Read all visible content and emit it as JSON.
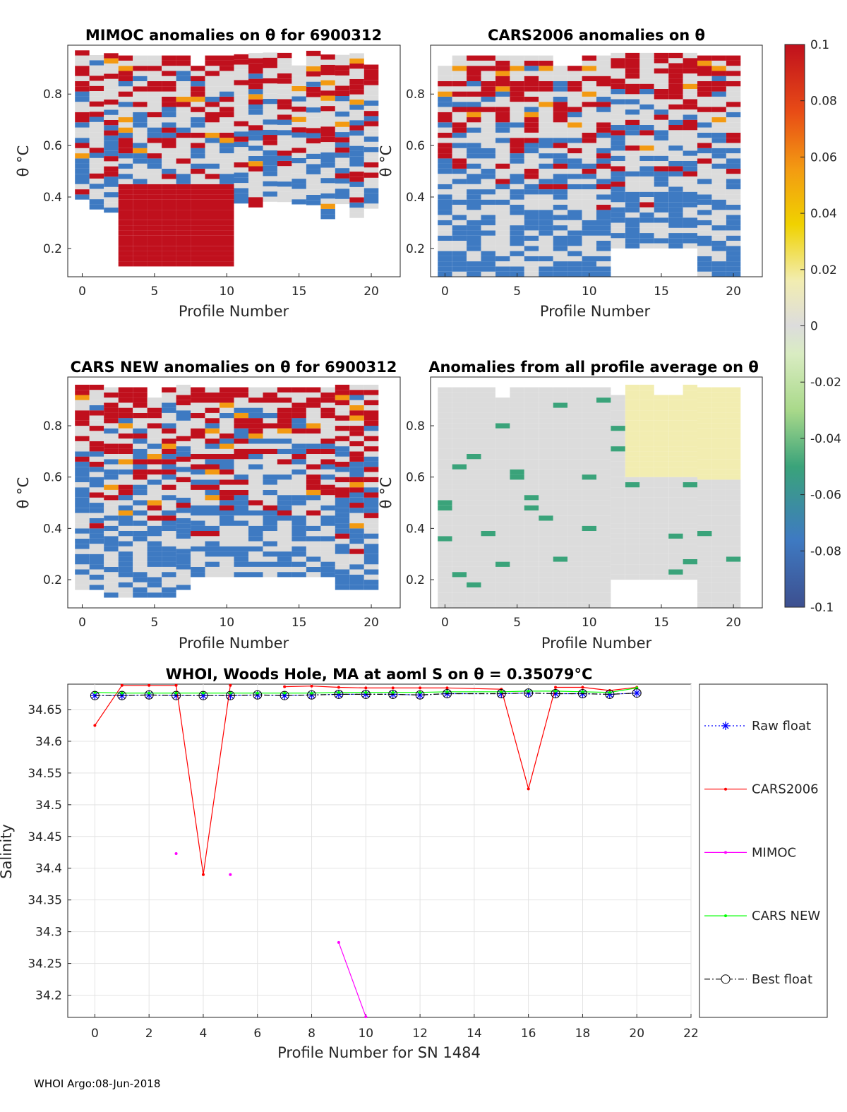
{
  "footer": "WHOI Argo:08-Jun-2018",
  "colorbar": {
    "ticks": [
      "0.1",
      "0.08",
      "0.06",
      "0.04",
      "0.02",
      "0",
      "-0.02",
      "-0.04",
      "-0.06",
      "-0.08",
      "-0.1"
    ],
    "range": [
      -0.1,
      0.1
    ]
  },
  "chart_data": [
    {
      "type": "heatmap",
      "title": "MIMOC anomalies on θ  for 6900312",
      "xlabel": "Profile Number",
      "ylabel": "θ °C",
      "xticks": [
        "0",
        "5",
        "10",
        "15",
        "20"
      ],
      "yticks": [
        "0.8",
        "0.6",
        "0.4",
        "0.2"
      ],
      "xlim": [
        -1,
        22
      ],
      "ylim": [
        0.09,
        0.99
      ]
    },
    {
      "type": "heatmap",
      "title": "CARS2006 anomalies on θ",
      "xlabel": "Profile Number",
      "ylabel": "θ °C",
      "xticks": [
        "0",
        "5",
        "10",
        "15",
        "20"
      ],
      "yticks": [
        "0.8",
        "0.6",
        "0.4",
        "0.2"
      ],
      "xlim": [
        -1,
        22
      ],
      "ylim": [
        0.09,
        0.99
      ]
    },
    {
      "type": "heatmap",
      "title": "CARS NEW anomalies on θ for 6900312",
      "xlabel": "Profile Number",
      "ylabel": "θ °C",
      "xticks": [
        "0",
        "5",
        "10",
        "15",
        "20"
      ],
      "yticks": [
        "0.8",
        "0.6",
        "0.4",
        "0.2"
      ],
      "xlim": [
        -1,
        22
      ],
      "ylim": [
        0.09,
        0.99
      ]
    },
    {
      "type": "heatmap",
      "title": "Anomalies from all profile average on θ",
      "xlabel": "Profile Number",
      "ylabel": "",
      "xticks": [
        "0",
        "5",
        "10",
        "15",
        "20"
      ],
      "yticks": [
        "0.8",
        "0.6",
        "0.4",
        "0.2"
      ],
      "xlim": [
        -1,
        22
      ],
      "ylim": [
        0.09,
        0.99
      ]
    },
    {
      "type": "line",
      "title": "WHOI, Woods Hole, MA at aoml S on θ = 0.35079°C",
      "xlabel": "Profile Number for SN 1484",
      "ylabel": "Salinity",
      "xlim": [
        -1,
        22
      ],
      "ylim": [
        34.165,
        34.69
      ],
      "xticks": [
        0,
        2,
        4,
        6,
        8,
        10,
        12,
        14,
        16,
        18,
        20,
        22
      ],
      "yticks": [
        34.2,
        34.25,
        34.3,
        34.35,
        34.4,
        34.45,
        34.5,
        34.55,
        34.6,
        34.65
      ],
      "series": [
        {
          "name": "Raw float",
          "color": "#0000ff",
          "style": "dotted",
          "marker": "star",
          "x": [
            0,
            1,
            2,
            3,
            4,
            5,
            6,
            7,
            8,
            9,
            10,
            11,
            12,
            13,
            15,
            16,
            17,
            18,
            19,
            20
          ],
          "y": [
            34.672,
            34.672,
            34.673,
            34.672,
            34.672,
            34.672,
            34.673,
            34.672,
            34.673,
            34.674,
            34.674,
            34.674,
            34.673,
            34.675,
            34.675,
            34.676,
            34.675,
            34.675,
            34.674,
            34.676
          ]
        },
        {
          "name": "CARS2006",
          "color": "#ff0000",
          "style": "solid",
          "marker": "dot",
          "x": [
            0,
            1,
            2,
            3,
            4,
            5,
            null,
            7,
            8,
            9,
            10,
            11,
            12,
            13,
            15,
            16,
            17,
            18,
            19,
            20
          ],
          "y": [
            34.625,
            34.688,
            34.688,
            34.688,
            34.39,
            34.688,
            null,
            34.686,
            34.687,
            34.685,
            34.684,
            34.684,
            34.684,
            34.684,
            34.682,
            34.525,
            34.685,
            34.685,
            34.68,
            34.685
          ]
        },
        {
          "name": "MIMOC",
          "color": "#ff00ff",
          "style": "solid",
          "marker": "dot",
          "x": [
            3,
            null,
            5,
            null,
            9,
            10
          ],
          "y": [
            34.423,
            null,
            34.39,
            null,
            34.283,
            34.166
          ]
        },
        {
          "name": "CARS NEW",
          "color": "#00ff00",
          "style": "solid",
          "marker": "dot",
          "x": [
            0,
            1,
            2,
            3,
            4,
            5,
            6,
            7,
            8,
            9,
            10,
            11,
            12,
            13,
            15,
            16,
            17,
            18,
            19,
            20
          ],
          "y": [
            34.677,
            34.676,
            34.676,
            34.676,
            34.676,
            34.676,
            34.676,
            34.676,
            34.676,
            34.677,
            34.677,
            34.677,
            34.677,
            34.678,
            34.678,
            34.679,
            34.679,
            34.678,
            34.677,
            34.684
          ]
        },
        {
          "name": "Best float",
          "color": "#000000",
          "style": "dashdot",
          "marker": "circle",
          "x": [
            0,
            1,
            2,
            3,
            4,
            5,
            6,
            7,
            8,
            9,
            10,
            11,
            12,
            13,
            15,
            16,
            17,
            18,
            19,
            20
          ],
          "y": [
            34.672,
            34.672,
            34.673,
            34.672,
            34.672,
            34.672,
            34.673,
            34.672,
            34.673,
            34.674,
            34.674,
            34.674,
            34.673,
            34.675,
            34.675,
            34.676,
            34.675,
            34.675,
            34.674,
            34.676
          ]
        }
      ]
    }
  ]
}
